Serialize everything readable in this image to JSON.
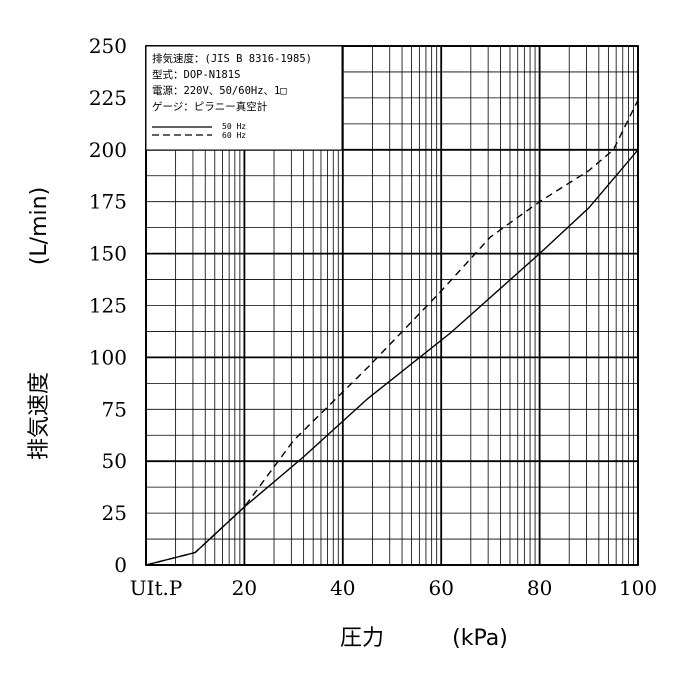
{
  "chart_data": {
    "type": "line",
    "ylabel_unit": "(L/min)",
    "ylabel": "排気速度",
    "xlabel": "圧力",
    "xlabel_unit": "(kPa)",
    "x_tick_labels": [
      "UIt.P",
      "20",
      "40",
      "60",
      "80",
      "100"
    ],
    "y_ticks": [
      0,
      25,
      50,
      75,
      100,
      125,
      150,
      175,
      200,
      225,
      250
    ],
    "ylim": [
      0,
      250
    ],
    "info_box": [
      "排気速度：(JIS B 8316-1985)",
      "型式：DOP-N181S",
      "電源：220V、50/60Hz、1□",
      "ゲージ：ピラニー真空計"
    ],
    "grid": true,
    "legend_position": "top-left",
    "series": [
      {
        "name": "50 Hz",
        "style": "solid",
        "points": [
          [
            0,
            0
          ],
          [
            10,
            6
          ],
          [
            20,
            28
          ],
          [
            32,
            52
          ],
          [
            45,
            80
          ],
          [
            62,
            112
          ],
          [
            80,
            150
          ],
          [
            90,
            172
          ],
          [
            100,
            200
          ]
        ]
      },
      {
        "name": "60 Hz",
        "style": "dashed",
        "points": [
          [
            0,
            0
          ],
          [
            10,
            6
          ],
          [
            20,
            28
          ],
          [
            30,
            60
          ],
          [
            45,
            95
          ],
          [
            60,
            132
          ],
          [
            70,
            158
          ],
          [
            80,
            175
          ],
          [
            90,
            190
          ],
          [
            95,
            200
          ],
          [
            100,
            224
          ]
        ]
      }
    ]
  }
}
